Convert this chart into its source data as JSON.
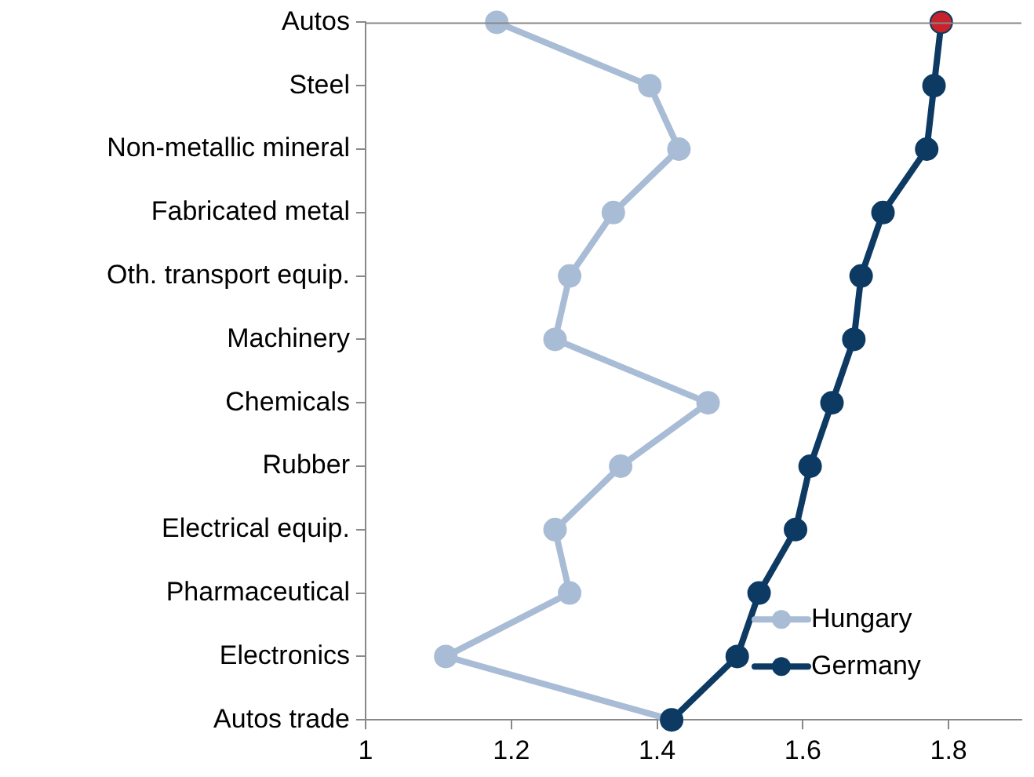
{
  "chart_data": {
    "type": "line",
    "orientation": "horizontal",
    "categories": [
      "Autos",
      "Steel",
      "Non-metallic mineral",
      "Fabricated metal",
      "Oth. transport equip.",
      "Machinery",
      "Chemicals",
      "Rubber",
      "Electrical equip.",
      "Pharmaceutical",
      "Electronics",
      "Autos trade"
    ],
    "series": [
      {
        "name": "Hungary",
        "color": "#a9bcd5",
        "values": [
          1.18,
          1.39,
          1.43,
          1.34,
          1.28,
          1.26,
          1.47,
          1.35,
          1.26,
          1.28,
          1.11,
          1.42
        ]
      },
      {
        "name": "Germany",
        "color": "#0d3a63",
        "colors": [
          "#c8232c",
          "#0d3a63",
          "#0d3a63",
          "#0d3a63",
          "#0d3a63",
          "#0d3a63",
          "#0d3a63",
          "#0d3a63",
          "#0d3a63",
          "#0d3a63",
          "#0d3a63",
          "#0d3a63"
        ],
        "values": [
          1.79,
          1.78,
          1.77,
          1.71,
          1.68,
          1.67,
          1.64,
          1.61,
          1.59,
          1.54,
          1.51,
          1.42
        ]
      }
    ],
    "xlim": [
      1,
      1.9
    ],
    "xticks": [
      1,
      1.2,
      1.4,
      1.6,
      1.8
    ],
    "grid": false,
    "legend": "bottom right",
    "marker": "circle",
    "line_style": "solid"
  }
}
